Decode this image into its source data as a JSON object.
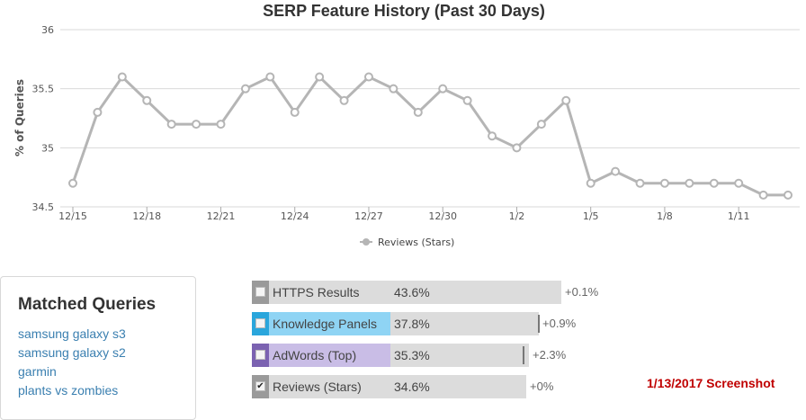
{
  "chart_data": {
    "type": "line",
    "title": "SERP Feature History (Past 30 Days)",
    "xlabel": "",
    "ylabel": "% of Queries",
    "ylim": [
      34.5,
      36
    ],
    "yticks": [
      "34.5",
      "35",
      "35.5",
      "36"
    ],
    "xticks": [
      "12/15",
      "12/18",
      "12/21",
      "12/24",
      "12/27",
      "12/30",
      "1/2",
      "1/5",
      "1/8",
      "1/11"
    ],
    "grid": true,
    "legend": "bottom-center",
    "series": [
      {
        "name": "Reviews (Stars)",
        "color": "#b5b5b5",
        "values": [
          34.7,
          35.3,
          35.6,
          35.4,
          35.2,
          35.2,
          35.2,
          35.5,
          35.6,
          35.3,
          35.6,
          35.4,
          35.6,
          35.5,
          35.3,
          35.5,
          35.4,
          35.1,
          35.0,
          35.2,
          35.4,
          34.7,
          34.8,
          34.7,
          34.7,
          34.7,
          34.7,
          34.7,
          34.6,
          34.6
        ]
      }
    ]
  },
  "matched": {
    "title": "Matched Queries",
    "queries": [
      "samsung galaxy s3",
      "samsung galaxy s2",
      "garmin",
      "plants vs zombies"
    ]
  },
  "features": [
    {
      "name": "HTTPS Results",
      "pct": "43.6%",
      "delta": "+0.1%",
      "accent": "#9a9a9a",
      "checked": false,
      "name_bg": "#dcdcdc",
      "fill": 1.0,
      "marker": null
    },
    {
      "name": "Knowledge Panels",
      "pct": "37.8%",
      "delta": "+0.9%",
      "accent": "#2aa6dc",
      "checked": false,
      "name_bg": "#8fd4f4",
      "fill": 0.867,
      "marker": 0.867
    },
    {
      "name": "AdWords (Top)",
      "pct": "35.3%",
      "delta": "+2.3%",
      "accent": "#7b62b1",
      "checked": false,
      "name_bg": "#c9bde6",
      "fill": 0.81,
      "marker": 0.78
    },
    {
      "name": "Reviews (Stars)",
      "pct": "34.6%",
      "delta": "+0%",
      "accent": "#9a9a9a",
      "checked": true,
      "name_bg": "#dcdcdc",
      "fill": 0.794,
      "marker": null
    }
  ],
  "screenshot_label": "1/13/2017 Screenshot"
}
